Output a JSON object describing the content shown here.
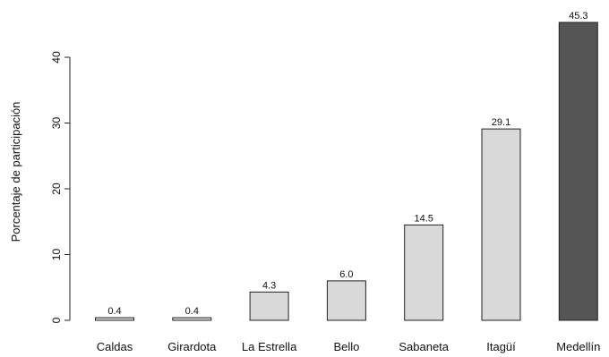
{
  "chart_data": {
    "type": "bar",
    "ylabel": "Porcentaje de participación",
    "xlabel": "",
    "categories": [
      "Caldas",
      "Girardota",
      "La Estrella",
      "Bello",
      "Sabaneta",
      "Itagüí",
      "Medellín"
    ],
    "values": [
      0.4,
      0.4,
      4.3,
      6.0,
      14.5,
      29.1,
      45.3
    ],
    "data_labels": [
      "0.4",
      "0.4",
      "4.3",
      "6.0",
      "14.5",
      "29.1",
      "45.3"
    ],
    "yticks": [
      0,
      10,
      20,
      30,
      40
    ],
    "ylim": [
      0,
      45.3
    ],
    "grid": false,
    "colors": {
      "bar": "#d9d9d9",
      "highlight_bar": "#555555",
      "stroke": "#222222"
    },
    "highlight_category": "Medellín"
  }
}
